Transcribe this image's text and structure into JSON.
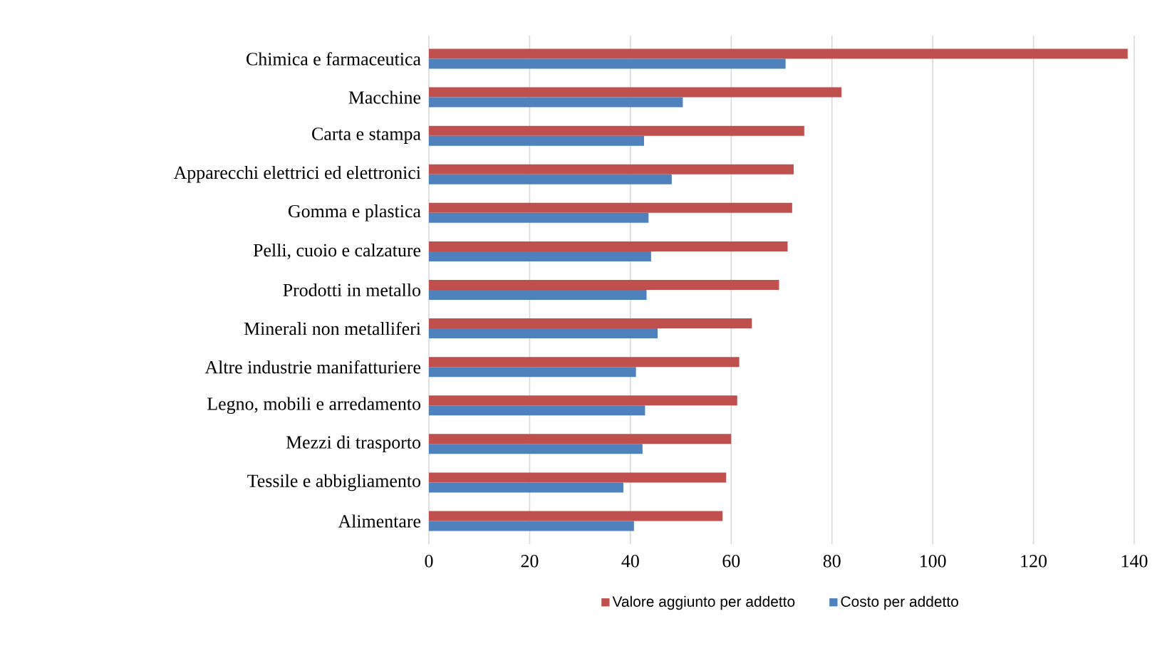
{
  "chart_data": {
    "type": "bar",
    "orientation": "horizontal",
    "categories": [
      "Chimica e farmaceutica",
      "Macchine",
      "Carta e stampa",
      "Apparecchi elettrici ed elettronici",
      "Gomma e plastica",
      "Pelli, cuoio e calzature",
      "Prodotti in metallo",
      "Minerali non metalliferi",
      "Altre industrie manifatturiere",
      "Legno, mobili e arredamento",
      "Mezzi di trasporto",
      "Tessile e abbigliamento",
      "Alimentare"
    ],
    "series": [
      {
        "name": "Valore aggiunto per addetto",
        "color": "#c0504d",
        "values": [
          138.7,
          81.9,
          74.5,
          72.4,
          72.1,
          71.2,
          69.5,
          64.1,
          61.6,
          61.2,
          60.0,
          59.0,
          58.3
        ]
      },
      {
        "name": "Costo per addetto",
        "color": "#4f81bd",
        "values": [
          70.8,
          50.4,
          42.7,
          48.2,
          43.6,
          44.1,
          43.2,
          45.4,
          41.1,
          42.9,
          42.4,
          38.6,
          40.7
        ]
      }
    ],
    "xlim": [
      0,
      140
    ],
    "xticks": [
      0,
      20,
      40,
      60,
      80,
      100,
      120,
      140
    ],
    "grid": "x",
    "legend": "bottom"
  }
}
